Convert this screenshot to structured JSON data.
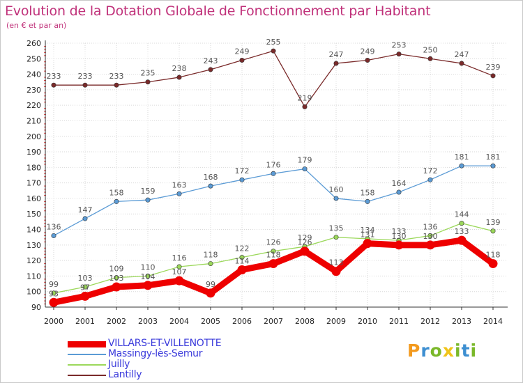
{
  "title": "Evolution de la Dotation Globale de Fonctionnement par Habitant",
  "subtitle": "(en € et par an)",
  "logo": {
    "letters": [
      "P",
      "r",
      "o",
      "x",
      "i",
      "t",
      "i"
    ],
    "colors": [
      "#f39a1e",
      "#3d8fd1",
      "#7ab829",
      "#f0c419",
      "#7ab829",
      "#3d8fd1",
      "#7ab829"
    ]
  },
  "chart_data": {
    "type": "line",
    "x": [
      "2000",
      "2001",
      "2002",
      "2003",
      "2004",
      "2005",
      "2006",
      "2007",
      "2008",
      "2009",
      "2010",
      "2011",
      "2012",
      "2013",
      "2014"
    ],
    "ylim": [
      90,
      260
    ],
    "yticks": [
      "90",
      "100",
      "110",
      "120",
      "130",
      "140",
      "150",
      "160",
      "170",
      "180",
      "190",
      "200",
      "210",
      "220",
      "230",
      "240",
      "250",
      "260"
    ],
    "grid": true,
    "legend_position": "bottom-left",
    "series": [
      {
        "name": "Lantilly",
        "color": "#7a2a2a",
        "values": [
          233,
          233,
          233,
          235,
          238,
          243,
          249,
          255,
          219,
          247,
          249,
          253,
          250,
          247,
          239
        ]
      },
      {
        "name": "Massingy-lès-Semur",
        "color": "#5b9bd5",
        "values": [
          136,
          147,
          158,
          159,
          163,
          168,
          172,
          176,
          179,
          160,
          158,
          164,
          172,
          181,
          181
        ]
      },
      {
        "name": "Juilly",
        "color": "#9bd85a",
        "values": [
          99,
          103,
          109,
          110,
          116,
          118,
          122,
          126,
          129,
          135,
          134,
          133,
          136,
          144,
          139
        ]
      },
      {
        "name": "VILLARS-ET-VILLENOTTE",
        "color": "#ee0000",
        "values": [
          93,
          97,
          103,
          104,
          107,
          99,
          114,
          118,
          126,
          113,
          131,
          130,
          130,
          133,
          118
        ]
      }
    ]
  }
}
